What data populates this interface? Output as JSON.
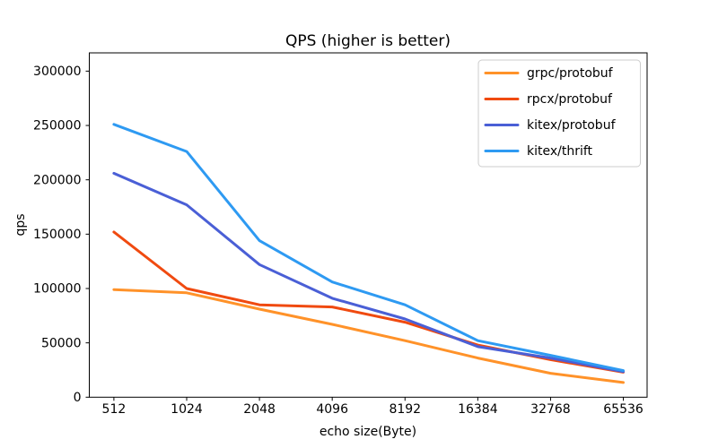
{
  "chart_data": {
    "type": "line",
    "title": "QPS (higher is better)",
    "xlabel": "echo size(Byte)",
    "ylabel": "qps",
    "categories": [
      "512",
      "1024",
      "2048",
      "4096",
      "8192",
      "16384",
      "32768",
      "65536"
    ],
    "y_ticks": [
      0,
      50000,
      100000,
      150000,
      200000,
      250000,
      300000
    ],
    "ylim": [
      0,
      316800
    ],
    "grid": false,
    "legend_position": "upper right",
    "series": [
      {
        "name": "grpc/protobuf",
        "color": "#ff9229",
        "values": [
          99000,
          96000,
          81000,
          67000,
          52000,
          36000,
          22000,
          13500
        ]
      },
      {
        "name": "rpcx/protobuf",
        "color": "#f04a10",
        "values": [
          152000,
          100000,
          85000,
          83000,
          69000,
          48000,
          34500,
          23000
        ]
      },
      {
        "name": "kitex/protobuf",
        "color": "#4a5fd6",
        "values": [
          206000,
          177000,
          122000,
          91000,
          72000,
          46500,
          36000,
          23500
        ]
      },
      {
        "name": "kitex/thrift",
        "color": "#2e9af2",
        "values": [
          251000,
          226000,
          144000,
          106000,
          85000,
          52000,
          38500,
          24500
        ]
      }
    ],
    "frame_color": "#000000",
    "line_width": 3
  }
}
